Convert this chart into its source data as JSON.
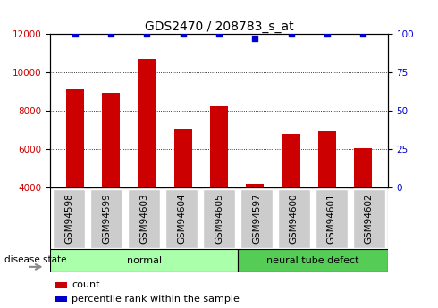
{
  "title": "GDS2470 / 208783_s_at",
  "samples": [
    "GSM94598",
    "GSM94599",
    "GSM94603",
    "GSM94604",
    "GSM94605",
    "GSM94597",
    "GSM94600",
    "GSM94601",
    "GSM94602"
  ],
  "counts": [
    9100,
    8950,
    10700,
    7100,
    8250,
    4200,
    6800,
    6950,
    6050
  ],
  "percentiles": [
    100,
    100,
    100,
    100,
    100,
    97,
    100,
    100,
    100
  ],
  "bar_color": "#cc0000",
  "dot_color": "#0000cc",
  "ylim_left": [
    4000,
    12000
  ],
  "ylim_right": [
    0,
    100
  ],
  "yticks_left": [
    4000,
    6000,
    8000,
    10000,
    12000
  ],
  "yticks_right": [
    0,
    25,
    50,
    75,
    100
  ],
  "groups": [
    {
      "label": "normal",
      "n": 5,
      "color": "#aaffaa"
    },
    {
      "label": "neural tube defect",
      "n": 4,
      "color": "#55cc55"
    }
  ],
  "disease_state_label": "disease state",
  "legend_count_label": "count",
  "legend_pct_label": "percentile rank within the sample",
  "bar_width": 0.5,
  "title_fontsize": 10,
  "tick_fontsize": 7.5,
  "label_fontsize": 8
}
